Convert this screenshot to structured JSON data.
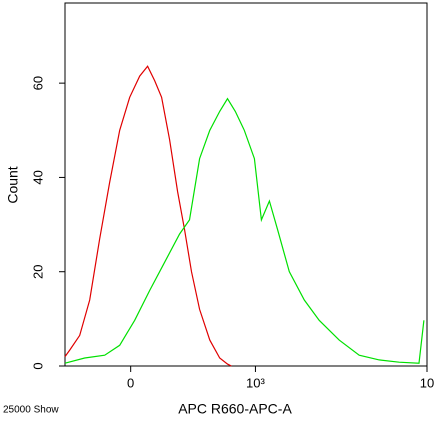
{
  "chart_data": {
    "type": "line",
    "xlabel": "APC R660-APC-A",
    "ylabel": "Count",
    "note": "25000 Show",
    "xscale": "arcsinh",
    "xscale_cofactor": 400,
    "xlim": [
      -392,
      10000
    ],
    "ylim": [
      0,
      77
    ],
    "xticks": [
      0,
      {
        "value": 1000,
        "label": "10³"
      },
      {
        "value": 10000,
        "label": "10"
      }
    ],
    "yticks": [
      0,
      20,
      40,
      60
    ],
    "series": [
      {
        "color": "#e00000",
        "x": [
          -392,
          -357,
          -290,
          -227,
          -168,
          -112,
          -58,
          -5,
          48,
          90,
          129,
          168,
          215,
          264,
          309,
          357,
          416,
          498,
          586,
          662,
          703
        ],
        "values": [
          2,
          3.4,
          6.5,
          14,
          27,
          39,
          50,
          57,
          61.5,
          63.6,
          60.5,
          57,
          48,
          37,
          29,
          20,
          12,
          5.5,
          1.7,
          0.4,
          0
        ]
      },
      {
        "color": "#00e000",
        "x": [
          -392,
          -258,
          -140,
          -58,
          21,
          101,
          185,
          277,
          343,
          416,
          498,
          586,
          662,
          746,
          852,
          985,
          1088,
          1216,
          1360,
          1600,
          1960,
          2392,
          3124,
          4076,
          5312,
          6916,
          9000,
          9600
        ],
        "values": [
          0.6,
          1.7,
          2.3,
          4.4,
          9.7,
          16,
          22,
          28,
          31,
          44,
          50,
          54,
          56.7,
          54,
          50,
          44,
          31,
          35,
          29,
          20,
          14,
          9.7,
          5.5,
          2.3,
          1.3,
          0.8,
          0.6,
          9.7
        ]
      }
    ]
  }
}
